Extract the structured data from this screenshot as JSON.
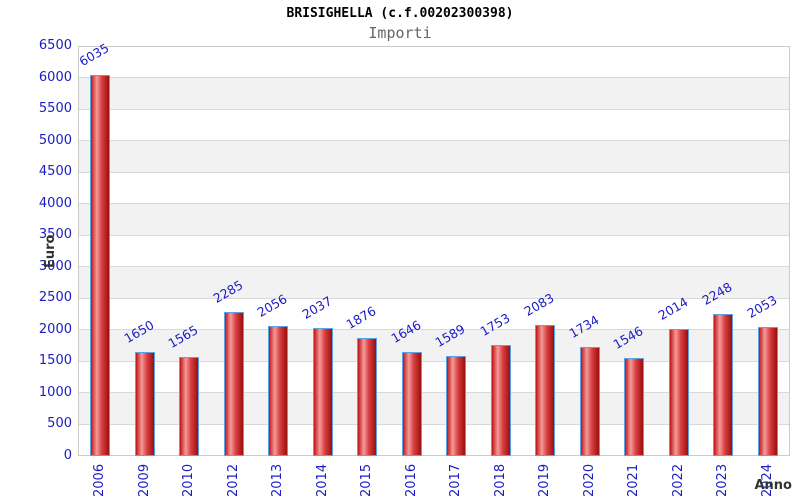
{
  "chart_data": {
    "type": "bar",
    "title": "BRISIGHELLA (c.f.00202300398)",
    "subtitle": "Importi",
    "xlabel": "Anno",
    "ylabel": "Euro",
    "categories": [
      "2006",
      "2009",
      "2010",
      "2012",
      "2013",
      "2014",
      "2015",
      "2016",
      "2017",
      "2018",
      "2019",
      "2020",
      "2021",
      "2022",
      "2023",
      "2024"
    ],
    "values": [
      6035,
      1650,
      1565,
      2285,
      2056,
      2037,
      1876,
      1646,
      1589,
      1753,
      2083,
      1734,
      1546,
      2014,
      2248,
      2053
    ],
    "ylim": [
      0,
      6500
    ],
    "ytick_step": 500,
    "grid": "horizontal",
    "legend": "none",
    "bar_value_labels_visible": true,
    "colors": {
      "tick_and_value_labels": "#1c1cc4",
      "bar_border": "#5aa3e6",
      "bar_gradient": [
        "#c01515",
        "#f49a9a",
        "#d84040",
        "#9c0e0e"
      ],
      "plot_band_alt": "#f2f2f2",
      "plot_band_main": "#ffffff",
      "grid_line": "#d9d9d9",
      "plot_border": "#cccccc",
      "axis_title_color": "#333333",
      "subtitle_color": "#666666",
      "title_color": "#000000"
    }
  }
}
